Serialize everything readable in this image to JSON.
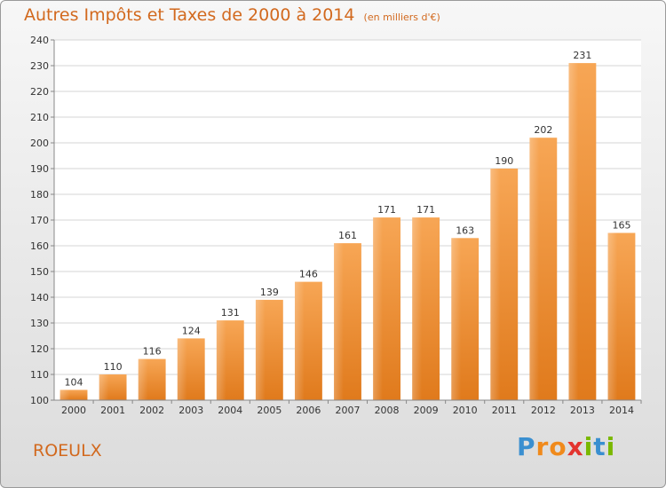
{
  "title": "Autres Impôts et Taxes de 2000 à 2014",
  "subtitle": "(en milliers d'€)",
  "commune": "ROEULX",
  "logo": {
    "text": "Proxiti",
    "letters": [
      "P",
      "r",
      "o",
      "x",
      "i",
      "t",
      "i"
    ],
    "colors": [
      "#3a8fd0",
      "#f08a1c",
      "#f08a1c",
      "#e3342f",
      "#7ab800",
      "#3a8fd0",
      "#7ab800"
    ]
  },
  "colors": {
    "bar": "#f0902e",
    "title": "#d2691e"
  },
  "chart_data": {
    "type": "bar",
    "categories": [
      "2000",
      "2001",
      "2002",
      "2003",
      "2004",
      "2005",
      "2006",
      "2007",
      "2008",
      "2009",
      "2010",
      "2011",
      "2012",
      "2013",
      "2014"
    ],
    "values": [
      104,
      110,
      116,
      124,
      131,
      139,
      146,
      161,
      171,
      171,
      163,
      190,
      202,
      231,
      165
    ],
    "ylim": [
      100,
      240
    ],
    "yticks": [
      100,
      110,
      120,
      130,
      140,
      150,
      160,
      170,
      180,
      190,
      200,
      210,
      220,
      230,
      240
    ],
    "grid": true
  }
}
